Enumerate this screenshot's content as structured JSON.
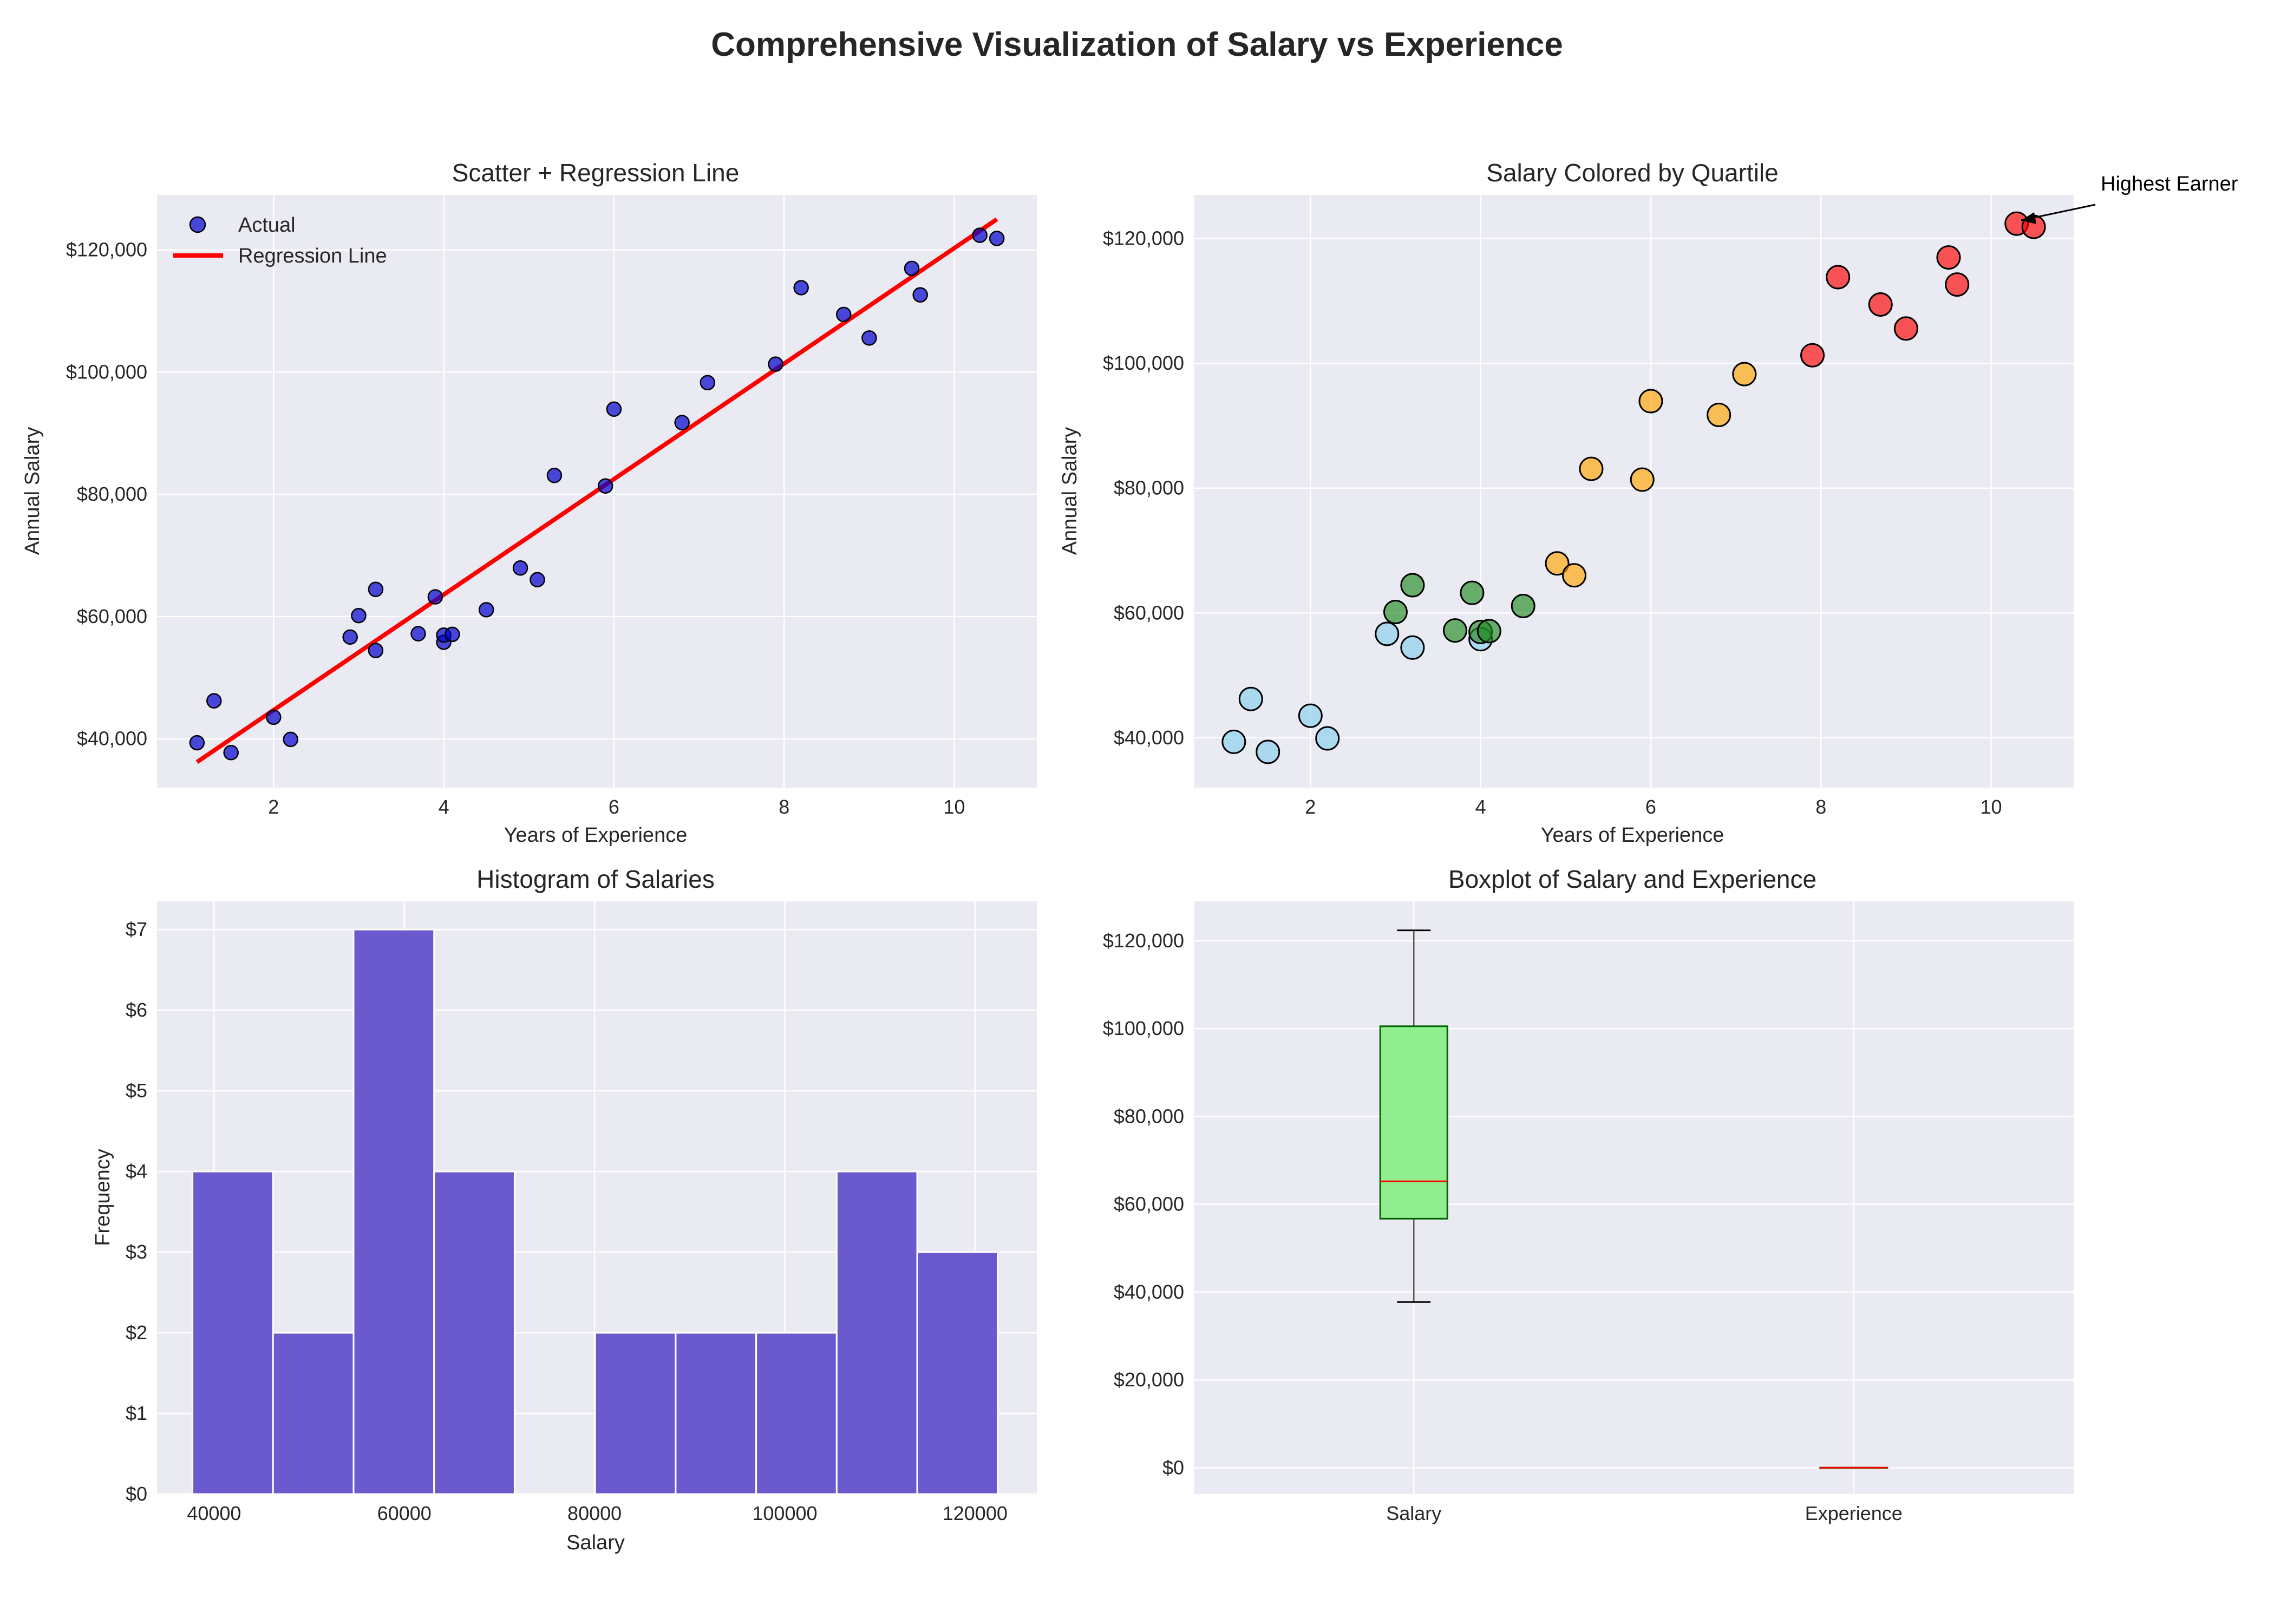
{
  "figure_title": "Comprehensive Visualization of Salary vs Experience",
  "chart_data": [
    {
      "id": "scatter_regression",
      "type": "scatter",
      "title": "Scatter + Regression Line",
      "xlabel": "Years of Experience",
      "ylabel": "Annual Salary",
      "xlim": [
        0.63,
        10.97
      ],
      "ylim": [
        32000,
        129000
      ],
      "xticks": [
        "2",
        "4",
        "6",
        "8",
        "10"
      ],
      "yticks": [
        "$40,000",
        "$60,000",
        "$80,000",
        "$100,000",
        "$120,000"
      ],
      "grid": true,
      "legend_position": "top-left",
      "series": [
        {
          "name": "Actual",
          "kind": "points",
          "color": "#0000CD",
          "x": [
            1.1,
            1.3,
            1.5,
            2.0,
            2.2,
            2.9,
            3.0,
            3.2,
            3.2,
            3.7,
            3.9,
            4.0,
            4.0,
            4.1,
            4.5,
            4.9,
            5.1,
            5.3,
            5.9,
            6.0,
            6.8,
            7.1,
            7.9,
            8.2,
            8.7,
            9.0,
            9.5,
            9.6,
            10.3,
            10.5
          ],
          "y": [
            39343,
            46205,
            37731,
            43525,
            39891,
            56642,
            60150,
            54445,
            64445,
            57189,
            63218,
            55794,
            56957,
            57081,
            61111,
            67938,
            66029,
            83088,
            81363,
            93940,
            91738,
            98273,
            101302,
            113812,
            109431,
            105582,
            116969,
            112635,
            122391,
            121872
          ]
        },
        {
          "name": "Regression Line",
          "kind": "line",
          "color": "#FF0000",
          "x": [
            1.1,
            10.5
          ],
          "y": [
            36188,
            125012
          ]
        }
      ]
    },
    {
      "id": "quartile_scatter",
      "type": "scatter",
      "title": "Salary Colored by Quartile",
      "xlabel": "Years of Experience",
      "ylabel": "Annual Salary",
      "xlim": [
        0.63,
        10.97
      ],
      "ylim": [
        32000,
        127000
      ],
      "xticks": [
        "2",
        "4",
        "6",
        "8",
        "10"
      ],
      "yticks": [
        "$40,000",
        "$60,000",
        "$80,000",
        "$100,000",
        "$120,000"
      ],
      "grid": true,
      "colors": [
        "#87CEEB",
        "#228B22",
        "#FFA500",
        "#FF0000"
      ],
      "x": [
        1.1,
        1.3,
        1.5,
        2.0,
        2.2,
        2.9,
        3.0,
        3.2,
        3.2,
        3.7,
        3.9,
        4.0,
        4.0,
        4.1,
        4.5,
        4.9,
        5.1,
        5.3,
        5.9,
        6.0,
        6.8,
        7.1,
        7.9,
        8.2,
        8.7,
        9.0,
        9.5,
        9.6,
        10.3,
        10.5
      ],
      "y": [
        39343,
        46205,
        37731,
        43525,
        39891,
        56642,
        60150,
        54445,
        64445,
        57189,
        63218,
        55794,
        56957,
        57081,
        61111,
        67938,
        66029,
        83088,
        81363,
        93940,
        91738,
        98273,
        101302,
        113812,
        109431,
        105582,
        116969,
        112635,
        122391,
        121872
      ],
      "quartile": [
        0,
        0,
        0,
        0,
        0,
        0,
        1,
        0,
        1,
        1,
        1,
        0,
        1,
        1,
        1,
        2,
        2,
        2,
        2,
        2,
        2,
        2,
        3,
        3,
        3,
        3,
        3,
        3,
        3,
        3
      ],
      "annotation": {
        "text": "Highest Earner",
        "x": 10.3,
        "y": 122391
      }
    },
    {
      "id": "salary_histogram",
      "type": "bar",
      "title": "Histogram of Salaries",
      "xlabel": "Salary",
      "ylabel": "Frequency",
      "xlim": [
        34000,
        126500
      ],
      "ylim": [
        0,
        7.35
      ],
      "xticks": [
        "40000",
        "60000",
        "80000",
        "100000",
        "120000"
      ],
      "yticks": [
        "$0",
        "$1",
        "$2",
        "$3",
        "$4",
        "$5",
        "$6",
        "$7"
      ],
      "grid": true,
      "color": "#6A5ACD",
      "bin_edges": [
        37731,
        46197,
        54663,
        63129,
        71595,
        80061,
        88527,
        96993,
        105459,
        113925,
        122391
      ],
      "values": [
        4,
        2,
        7,
        4,
        0,
        2,
        2,
        2,
        4,
        3
      ]
    },
    {
      "id": "boxplot",
      "type": "boxplot",
      "title": "Boxplot of Salary and Experience",
      "ylim": [
        -6000,
        129000
      ],
      "yticks": [
        "$0",
        "$20,000",
        "$40,000",
        "$60,000",
        "$80,000",
        "$100,000",
        "$120,000"
      ],
      "grid": true,
      "categories": [
        "Salary",
        "Experience"
      ],
      "box_color": "#90EE90",
      "median_color": "#FF0000",
      "stats": [
        {
          "min": 37731,
          "q1": 56721,
          "median": 65237,
          "q3": 100545,
          "max": 122391
        },
        {
          "min": 1.1,
          "q1": 3.2,
          "median": 4.7,
          "q3": 7.7,
          "max": 10.5
        }
      ]
    }
  ]
}
